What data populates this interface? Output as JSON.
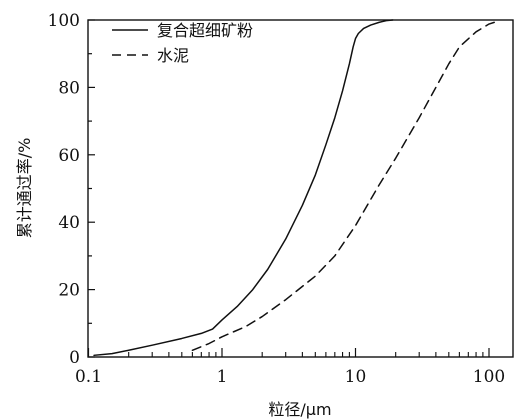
{
  "chart_data": {
    "type": "line",
    "title": "",
    "xlabel": "粒径/μm",
    "ylabel": "累计通过率/%",
    "xscale": "log",
    "xlim": [
      0.1,
      150
    ],
    "ylim": [
      0,
      100
    ],
    "xticks": [
      0.1,
      1,
      10,
      100
    ],
    "xtick_labels": [
      "0.1",
      "1",
      "10",
      "100"
    ],
    "yticks": [
      0,
      20,
      40,
      60,
      80,
      100
    ],
    "ytick_labels": [
      "0",
      "20",
      "40",
      "60",
      "80",
      "100"
    ],
    "grid": false,
    "legend_position": "top-left",
    "series": [
      {
        "name": "复合超细矿粉",
        "style": "solid",
        "color": "#111111",
        "x": [
          0.11,
          0.15,
          0.2,
          0.3,
          0.5,
          0.7,
          0.85,
          1.0,
          1.3,
          1.7,
          2.2,
          3.0,
          4.0,
          5.0,
          6.0,
          7.0,
          8.0,
          9.0,
          9.6,
          10.0,
          10.5,
          11.5,
          13.0,
          15.0,
          17.0,
          19.0
        ],
        "y": [
          0.5,
          1.0,
          2.0,
          3.5,
          5.5,
          7.0,
          8.3,
          11.0,
          15.0,
          20.0,
          26.0,
          35.0,
          45.0,
          54.0,
          63.0,
          71.0,
          79.0,
          87.0,
          92.0,
          94.5,
          96.0,
          97.5,
          98.5,
          99.3,
          99.8,
          100.0
        ]
      },
      {
        "name": "水泥",
        "style": "dashed",
        "color": "#111111",
        "x": [
          0.6,
          0.8,
          1.0,
          1.5,
          2.0,
          3.0,
          5.0,
          7.0,
          10.0,
          15.0,
          20.0,
          30.0,
          40.0,
          50.0,
          60.0,
          80.0,
          100.0,
          120.0
        ],
        "y": [
          2.0,
          4.0,
          6.0,
          9.0,
          12.0,
          17.0,
          24.0,
          30.0,
          39.0,
          51.0,
          59.0,
          71.0,
          80.0,
          87.0,
          92.0,
          96.5,
          98.8,
          99.8
        ]
      }
    ]
  }
}
